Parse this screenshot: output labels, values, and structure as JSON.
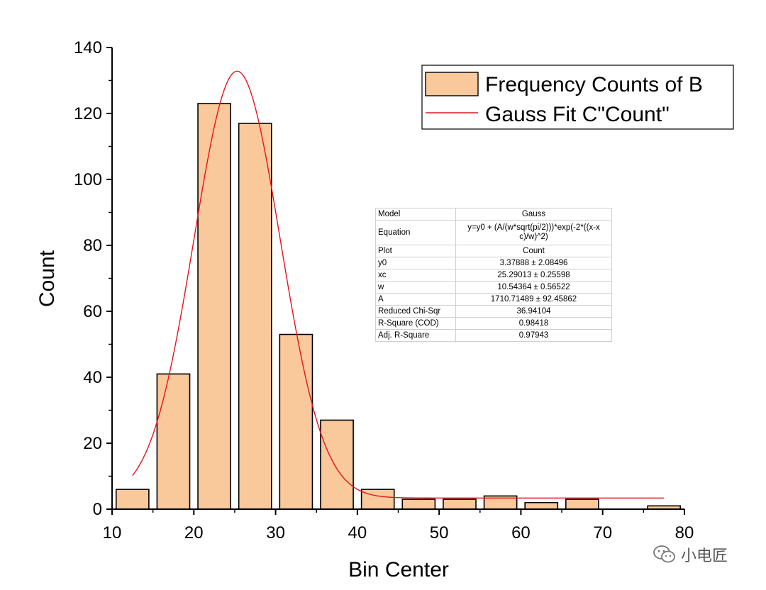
{
  "chart_data": {
    "type": "bar",
    "xlabel": "Bin Center",
    "ylabel": "Count",
    "xlim": [
      10,
      80
    ],
    "ylim": [
      0,
      140
    ],
    "x_ticks": [
      10,
      20,
      30,
      40,
      50,
      60,
      70,
      80
    ],
    "y_ticks": [
      0,
      20,
      40,
      60,
      80,
      100,
      120,
      140
    ],
    "bar_width": 4,
    "bars": [
      {
        "x": 12.5,
        "value": 6
      },
      {
        "x": 17.5,
        "value": 41
      },
      {
        "x": 22.5,
        "value": 123
      },
      {
        "x": 27.5,
        "value": 117
      },
      {
        "x": 32.5,
        "value": 53
      },
      {
        "x": 37.5,
        "value": 27
      },
      {
        "x": 42.5,
        "value": 6
      },
      {
        "x": 47.5,
        "value": 3
      },
      {
        "x": 52.5,
        "value": 3
      },
      {
        "x": 57.5,
        "value": 4
      },
      {
        "x": 62.5,
        "value": 2
      },
      {
        "x": 67.5,
        "value": 3
      },
      {
        "x": 72.5,
        "value": 0
      },
      {
        "x": 77.5,
        "value": 1
      }
    ],
    "fit": {
      "model": "Gauss",
      "y0": 3.37888,
      "xc": 25.29013,
      "w": 10.54364,
      "A": 1710.71489,
      "x_range": [
        12.5,
        77.5
      ]
    },
    "legend": {
      "position": "top-right",
      "entries": [
        "Frequency Counts of B",
        "Gauss Fit C\"Count\""
      ]
    },
    "colors": {
      "bar_fill": "#f9c89b",
      "bar_edge": "#000000",
      "fit_line": "#e8141b"
    }
  },
  "stats_table": {
    "rows": [
      {
        "key": "Model",
        "value": "Gauss"
      },
      {
        "key": "Equation",
        "value": "y=y0 + (A/(w*sqrt(pi/2)))*exp(-2*((x-x",
        "value2": "c)/w)^2)"
      },
      {
        "key": "Plot",
        "value": "Count"
      },
      {
        "key": "y0",
        "value": "3.37888 ± 2.08496"
      },
      {
        "key": "xc",
        "value": "25.29013 ± 0.25598"
      },
      {
        "key": "w",
        "value": "10.54364 ± 0.56522"
      },
      {
        "key": "A",
        "value": "1710.71489 ± 92.45862"
      },
      {
        "key": "Reduced Chi-Sqr",
        "value": "36.94104"
      },
      {
        "key": "R-Square (COD)",
        "value": "0.98418"
      },
      {
        "key": "Adj. R-Square",
        "value": "0.97943"
      }
    ]
  },
  "watermark": {
    "icon": "wechat-icon",
    "text": "小电匠"
  }
}
